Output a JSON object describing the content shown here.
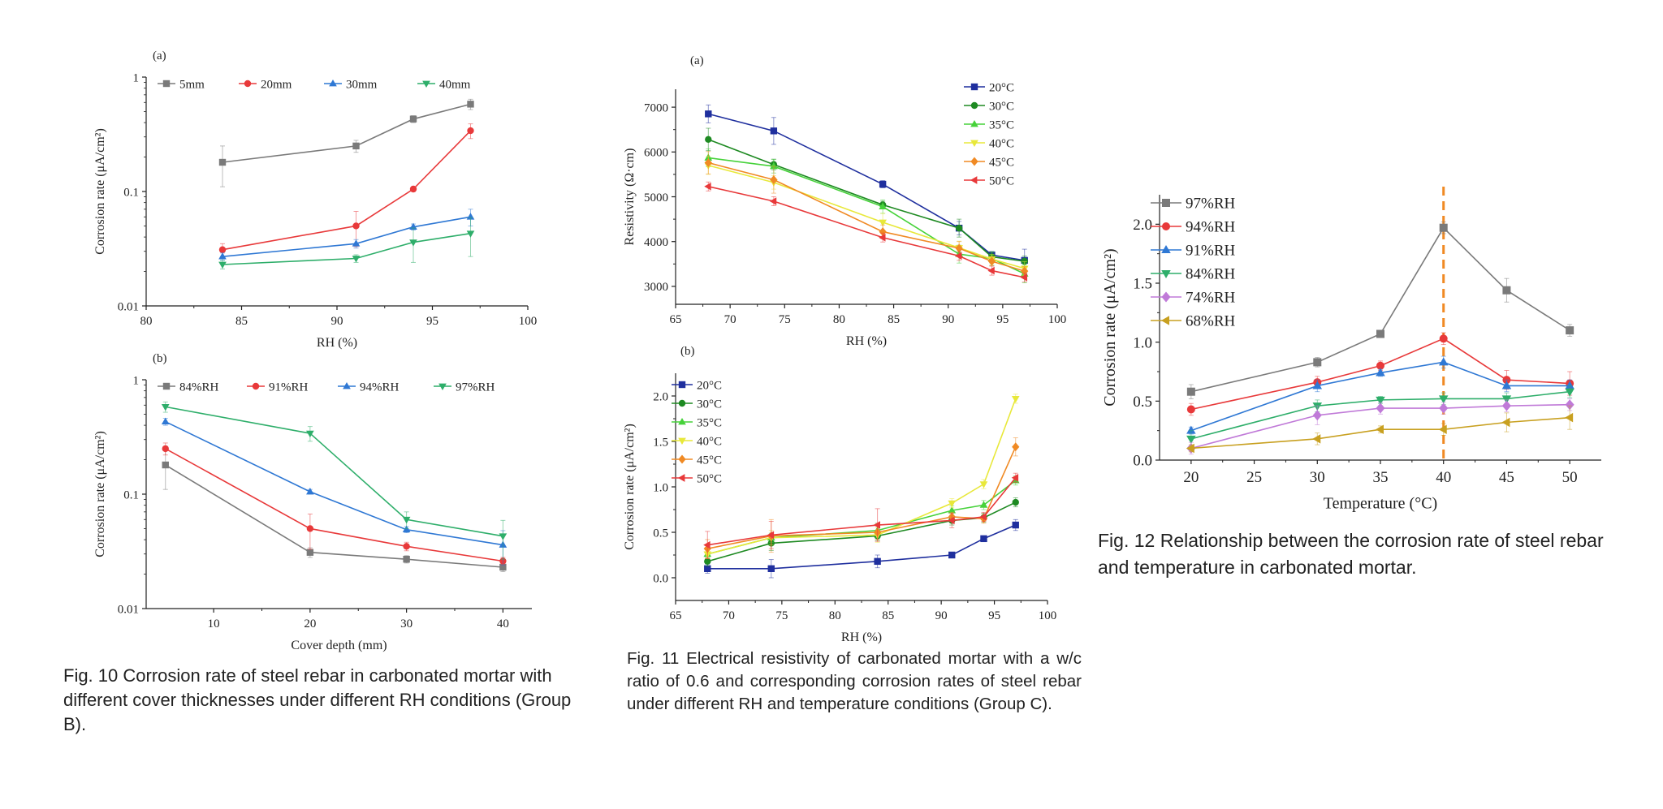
{
  "colors": {
    "gray": "#7a7a7a",
    "red": "#e8393a",
    "blue": "#2f78d4",
    "green": "#2eae6a",
    "navy": "#1f2f9e",
    "dgreen": "#1e8a22",
    "lgreen": "#46d23a",
    "yellow": "#e8e83a",
    "orange": "#f08a24",
    "purple": "#c07ad8",
    "gold": "#c8a020",
    "dashed": "#f08a24"
  },
  "captions": {
    "fig10": "Fig. 10 Corrosion rate of steel rebar in carbonated mortar with different cover thicknesses under different RH conditions (Group B).",
    "fig11": "Fig. 11 Electrical resistivity of carbonated mortar with a w/c ratio of 0.6 and corresponding corrosion rates of steel rebar under different RH and temperature conditions (Group C).",
    "fig12": "Fig. 12 Relationship between the corrosion rate of steel rebar and temperature in carbonated mortar."
  },
  "chart_data": [
    {
      "id": "fig10a",
      "panel_label": "(a)",
      "type": "line",
      "xlabel": "RH (%)",
      "ylabel": "Corrosion rate (μA/cm²)",
      "xlim": [
        80,
        100
      ],
      "ylim": [
        0.01,
        1
      ],
      "ylog": true,
      "xticks": [
        80,
        85,
        90,
        95,
        100
      ],
      "yticks": [
        0.01,
        0.1,
        1
      ],
      "ytick_labels": [
        "0.01",
        "0.1",
        "1"
      ],
      "legend": "top-row",
      "series": [
        {
          "name": "5mm",
          "color": "gray",
          "marker": "square",
          "x": [
            84,
            91,
            94,
            97
          ],
          "y": [
            0.18,
            0.25,
            0.43,
            0.58
          ],
          "err": [
            0.07,
            0.03,
            0.03,
            0.06
          ]
        },
        {
          "name": "20mm",
          "color": "red",
          "marker": "circle",
          "x": [
            84,
            91,
            94,
            97
          ],
          "y": [
            0.031,
            0.05,
            0.105,
            0.34
          ],
          "err": [
            0.004,
            0.017,
            0.005,
            0.05
          ]
        },
        {
          "name": "30mm",
          "color": "blue",
          "marker": "triangle-up",
          "x": [
            84,
            91,
            94,
            97
          ],
          "y": [
            0.027,
            0.035,
            0.049,
            0.06
          ],
          "err": [
            0.002,
            0.003,
            0.003,
            0.01
          ]
        },
        {
          "name": "40mm",
          "color": "green",
          "marker": "triangle-down",
          "x": [
            84,
            91,
            94,
            97
          ],
          "y": [
            0.023,
            0.026,
            0.036,
            0.043
          ],
          "err": [
            0.002,
            0.002,
            0.012,
            0.016
          ]
        }
      ]
    },
    {
      "id": "fig10b",
      "panel_label": "(b)",
      "type": "line",
      "xlabel": "Cover depth (mm)",
      "ylabel": "Corrosion rate (μA/cm²)",
      "xlim": [
        3,
        43
      ],
      "ylim": [
        0.01,
        1
      ],
      "ylog": true,
      "xticks": [
        10,
        20,
        30,
        40
      ],
      "yticks": [
        0.01,
        0.1,
        1
      ],
      "ytick_labels": [
        "0.01",
        "0.1",
        "1"
      ],
      "legend": "top-row",
      "series": [
        {
          "name": "84%RH",
          "color": "gray",
          "marker": "square",
          "x": [
            5,
            20,
            30,
            40
          ],
          "y": [
            0.18,
            0.031,
            0.027,
            0.023
          ],
          "err": [
            0.07,
            0.003,
            0.002,
            0.002
          ]
        },
        {
          "name": "91%RH",
          "color": "red",
          "marker": "circle",
          "x": [
            5,
            20,
            30,
            40
          ],
          "y": [
            0.25,
            0.05,
            0.035,
            0.026
          ],
          "err": [
            0.03,
            0.017,
            0.003,
            0.002
          ]
        },
        {
          "name": "94%RH",
          "color": "blue",
          "marker": "triangle-up",
          "x": [
            5,
            20,
            30,
            40
          ],
          "y": [
            0.43,
            0.105,
            0.049,
            0.036
          ],
          "err": [
            0.03,
            0.005,
            0.003,
            0.012
          ]
        },
        {
          "name": "97%RH",
          "color": "green",
          "marker": "triangle-down",
          "x": [
            5,
            20,
            30,
            40
          ],
          "y": [
            0.58,
            0.34,
            0.06,
            0.043
          ],
          "err": [
            0.06,
            0.05,
            0.01,
            0.016
          ]
        }
      ]
    },
    {
      "id": "fig11a",
      "panel_label": "(a)",
      "type": "line",
      "xlabel": "RH (%)",
      "ylabel": "Resistivity (Ω·cm)",
      "xlim": [
        65,
        100
      ],
      "ylim": [
        2600,
        7400
      ],
      "ylog": false,
      "xticks": [
        65,
        70,
        75,
        80,
        85,
        90,
        95,
        100
      ],
      "yticks": [
        3000,
        4000,
        5000,
        6000,
        7000
      ],
      "ytick_labels": [
        "3000",
        "4000",
        "5000",
        "6000",
        "7000"
      ],
      "legend": "top-right",
      "series": [
        {
          "name": "20°C",
          "color": "navy",
          "marker": "square",
          "x": [
            68,
            74,
            84,
            91,
            94,
            97
          ],
          "y": [
            6850,
            6470,
            5280,
            4300,
            3700,
            3580
          ],
          "err": [
            200,
            300,
            80,
            150,
            80,
            250
          ]
        },
        {
          "name": "30°C",
          "color": "dgreen",
          "marker": "circle",
          "x": [
            68,
            74,
            84,
            91,
            94,
            97
          ],
          "y": [
            6280,
            5720,
            4820,
            4300,
            3660,
            3560
          ],
          "err": [
            250,
            120,
            80,
            200,
            100,
            120
          ]
        },
        {
          "name": "35°C",
          "color": "lgreen",
          "marker": "triangle-up",
          "x": [
            68,
            74,
            84,
            91,
            94,
            97
          ],
          "y": [
            5870,
            5680,
            4780,
            3720,
            3620,
            3280
          ],
          "err": [
            200,
            150,
            150,
            200,
            150,
            200
          ]
        },
        {
          "name": "40°C",
          "color": "yellow",
          "marker": "triangle-down",
          "x": [
            68,
            74,
            84,
            91,
            94,
            97
          ],
          "y": [
            5700,
            5320,
            4430,
            3860,
            3610,
            3400
          ],
          "err": [
            200,
            150,
            200,
            150,
            100,
            150
          ]
        },
        {
          "name": "45°C",
          "color": "orange",
          "marker": "diamond",
          "x": [
            68,
            74,
            84,
            91,
            94,
            97
          ],
          "y": [
            5760,
            5380,
            4220,
            3850,
            3560,
            3340
          ],
          "err": [
            250,
            300,
            150,
            150,
            100,
            100
          ]
        },
        {
          "name": "50°C",
          "color": "red",
          "marker": "triangle-left",
          "x": [
            68,
            74,
            84,
            91,
            94,
            97
          ],
          "y": [
            5230,
            4900,
            4090,
            3680,
            3350,
            3200
          ],
          "err": [
            100,
            100,
            100,
            100,
            100,
            100
          ]
        }
      ]
    },
    {
      "id": "fig11b",
      "panel_label": "(b)",
      "type": "line",
      "xlabel": "RH (%)",
      "ylabel": "Corrosion rate (μA/cm²)",
      "xlim": [
        65,
        100
      ],
      "ylim": [
        -0.25,
        2.25
      ],
      "ylog": false,
      "xticks": [
        65,
        70,
        75,
        80,
        85,
        90,
        95,
        100
      ],
      "yticks": [
        0,
        0.5,
        1,
        1.5,
        2
      ],
      "ytick_labels": [
        "0.0",
        "0.5",
        "1.0",
        "1.5",
        "2.0"
      ],
      "legend": "top-left",
      "series": [
        {
          "name": "20°C",
          "color": "navy",
          "marker": "square",
          "x": [
            68,
            74,
            84,
            91,
            94,
            97
          ],
          "y": [
            0.1,
            0.1,
            0.18,
            0.25,
            0.43,
            0.58
          ],
          "err": [
            0.05,
            0.1,
            0.07,
            0.03,
            0.03,
            0.06
          ]
        },
        {
          "name": "30°C",
          "color": "dgreen",
          "marker": "circle",
          "x": [
            68,
            74,
            84,
            91,
            94,
            97
          ],
          "y": [
            0.18,
            0.38,
            0.46,
            0.63,
            0.66,
            0.83
          ],
          "err": [
            0.05,
            0.08,
            0.05,
            0.05,
            0.05,
            0.05
          ]
        },
        {
          "name": "35°C",
          "color": "lgreen",
          "marker": "triangle-up",
          "x": [
            68,
            74,
            84,
            91,
            94,
            97
          ],
          "y": [
            0.26,
            0.44,
            0.52,
            0.74,
            0.8,
            1.07
          ],
          "err": [
            0.05,
            0.05,
            0.08,
            0.05,
            0.05,
            0.05
          ]
        },
        {
          "name": "40°C",
          "color": "yellow",
          "marker": "triangle-down",
          "x": [
            68,
            74,
            84,
            91,
            94,
            97
          ],
          "y": [
            0.26,
            0.44,
            0.47,
            0.82,
            1.03,
            1.97
          ],
          "err": [
            0.05,
            0.08,
            0.08,
            0.05,
            0.05,
            0.05
          ]
        },
        {
          "name": "45°C",
          "color": "orange",
          "marker": "diamond",
          "x": [
            68,
            74,
            84,
            91,
            94,
            97
          ],
          "y": [
            0.32,
            0.46,
            0.5,
            0.67,
            0.65,
            1.44
          ],
          "err": [
            0.1,
            0.18,
            0.08,
            0.05,
            0.05,
            0.1
          ]
        },
        {
          "name": "50°C",
          "color": "red",
          "marker": "triangle-left",
          "x": [
            68,
            74,
            84,
            91,
            94,
            97
          ],
          "y": [
            0.36,
            0.47,
            0.58,
            0.63,
            0.67,
            1.1
          ],
          "err": [
            0.15,
            0.15,
            0.18,
            0.08,
            0.05,
            0.05
          ]
        }
      ]
    },
    {
      "id": "fig12",
      "panel_label": "",
      "type": "line",
      "xlabel": "Temperature (°C)",
      "ylabel": "Corrosion rate (μA/cm²)",
      "xlim": [
        17.5,
        52.5
      ],
      "ylim": [
        0,
        2.25
      ],
      "ylog": false,
      "xticks": [
        20,
        25,
        30,
        35,
        40,
        45,
        50
      ],
      "yticks": [
        0,
        0.5,
        1,
        1.5,
        2
      ],
      "ytick_labels": [
        "0.0",
        "0.5",
        "1.0",
        "1.5",
        "2.0"
      ],
      "legend": "top-left",
      "vline": {
        "x": 40,
        "color": "dashed"
      },
      "series": [
        {
          "name": "97%RH",
          "color": "gray",
          "marker": "square",
          "x": [
            20,
            30,
            35,
            40,
            45,
            50
          ],
          "y": [
            0.58,
            0.83,
            1.07,
            1.97,
            1.44,
            1.1
          ],
          "err": [
            0.06,
            0.04,
            0.03,
            0.05,
            0.1,
            0.05
          ]
        },
        {
          "name": "94%RH",
          "color": "red",
          "marker": "circle",
          "x": [
            20,
            30,
            35,
            40,
            45,
            50
          ],
          "y": [
            0.43,
            0.66,
            0.8,
            1.03,
            0.68,
            0.65
          ],
          "err": [
            0.05,
            0.05,
            0.04,
            0.05,
            0.08,
            0.1
          ]
        },
        {
          "name": "91%RH",
          "color": "blue",
          "marker": "triangle-up",
          "x": [
            20,
            30,
            35,
            40,
            45,
            50
          ],
          "y": [
            0.25,
            0.63,
            0.74,
            0.83,
            0.63,
            0.63
          ],
          "err": [
            0.03,
            0.05,
            0.03,
            0.05,
            0.05,
            0.05
          ]
        },
        {
          "name": "84%RH",
          "color": "green",
          "marker": "triangle-down",
          "x": [
            20,
            30,
            35,
            40,
            45,
            50
          ],
          "y": [
            0.18,
            0.46,
            0.51,
            0.52,
            0.52,
            0.58
          ],
          "err": [
            0.07,
            0.05,
            0.03,
            0.05,
            0.05,
            0.05
          ]
        },
        {
          "name": "74%RH",
          "color": "purple",
          "marker": "diamond",
          "x": [
            20,
            30,
            35,
            40,
            45,
            50
          ],
          "y": [
            0.1,
            0.38,
            0.44,
            0.44,
            0.46,
            0.47
          ],
          "err": [
            0.05,
            0.08,
            0.05,
            0.05,
            0.05,
            0.05
          ]
        },
        {
          "name": "68%RH",
          "color": "gold",
          "marker": "triangle-left",
          "x": [
            20,
            30,
            35,
            40,
            45,
            50
          ],
          "y": [
            0.1,
            0.18,
            0.26,
            0.26,
            0.32,
            0.36
          ],
          "err": [
            0.03,
            0.05,
            0.03,
            0.05,
            0.08,
            0.1
          ]
        }
      ]
    }
  ]
}
